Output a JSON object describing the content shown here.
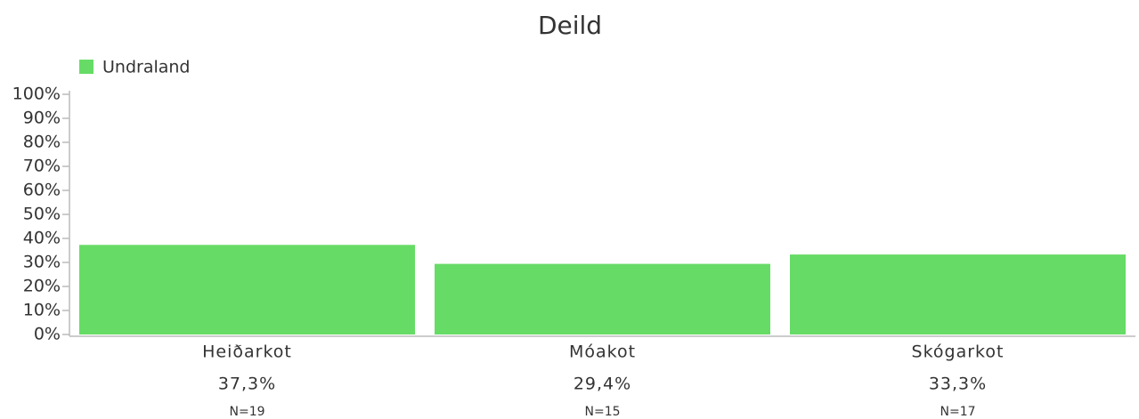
{
  "chart_data": {
    "type": "bar",
    "title": "Deild",
    "categories": [
      "Heiðarkot",
      "Móakot",
      "Skógarkot"
    ],
    "series": [
      {
        "name": "Undraland",
        "color": "#66dc66",
        "values": [
          37.3,
          29.4,
          33.3
        ],
        "value_labels": [
          "37,3%",
          "29,4%",
          "33,3%"
        ]
      }
    ],
    "n_labels": [
      "N=19",
      "N=15",
      "N=17"
    ],
    "ylim": [
      0,
      100
    ],
    "yticks": [
      {
        "value": 0,
        "label": "0%"
      },
      {
        "value": 10,
        "label": "10%"
      },
      {
        "value": 20,
        "label": "20%"
      },
      {
        "value": 30,
        "label": "30%"
      },
      {
        "value": 40,
        "label": "40%"
      },
      {
        "value": 50,
        "label": "50%"
      },
      {
        "value": 60,
        "label": "60%"
      },
      {
        "value": 70,
        "label": "70%"
      },
      {
        "value": 80,
        "label": "80%"
      },
      {
        "value": 90,
        "label": "90%"
      },
      {
        "value": 100,
        "label": "100%"
      }
    ],
    "grid": false,
    "legend": "top-left"
  }
}
